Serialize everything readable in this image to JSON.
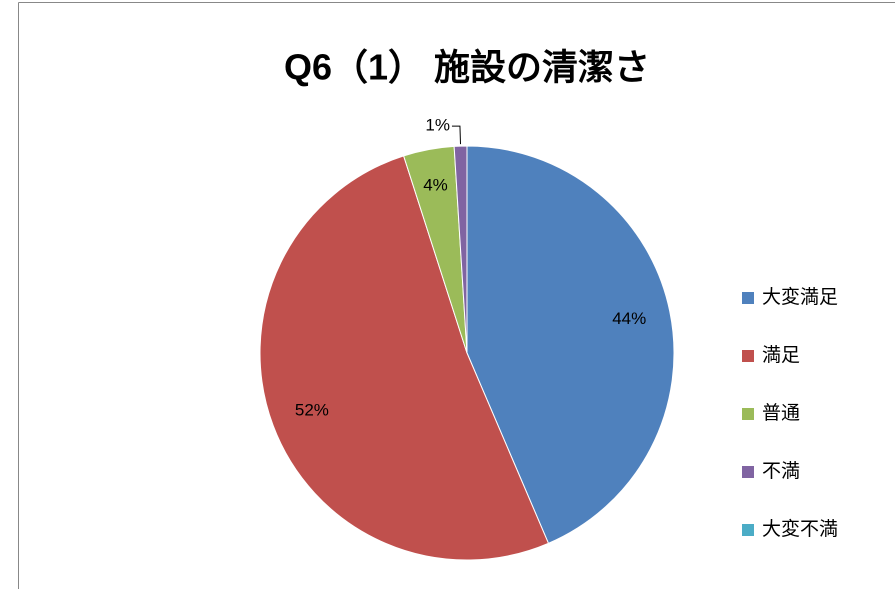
{
  "chart_data": {
    "type": "pie",
    "title": "Q6（1） 施設の清潔さ",
    "categories": [
      "大変満足",
      "満足",
      "普通",
      "不満",
      "大変不満"
    ],
    "values": [
      44,
      52,
      4,
      1,
      0
    ],
    "value_labels": [
      "44%",
      "52%",
      "4%",
      "1%",
      null
    ],
    "colors": [
      "#4f81bd",
      "#c0504d",
      "#9bbb59",
      "#8064a2",
      "#4bacc6"
    ],
    "legend": "right"
  }
}
